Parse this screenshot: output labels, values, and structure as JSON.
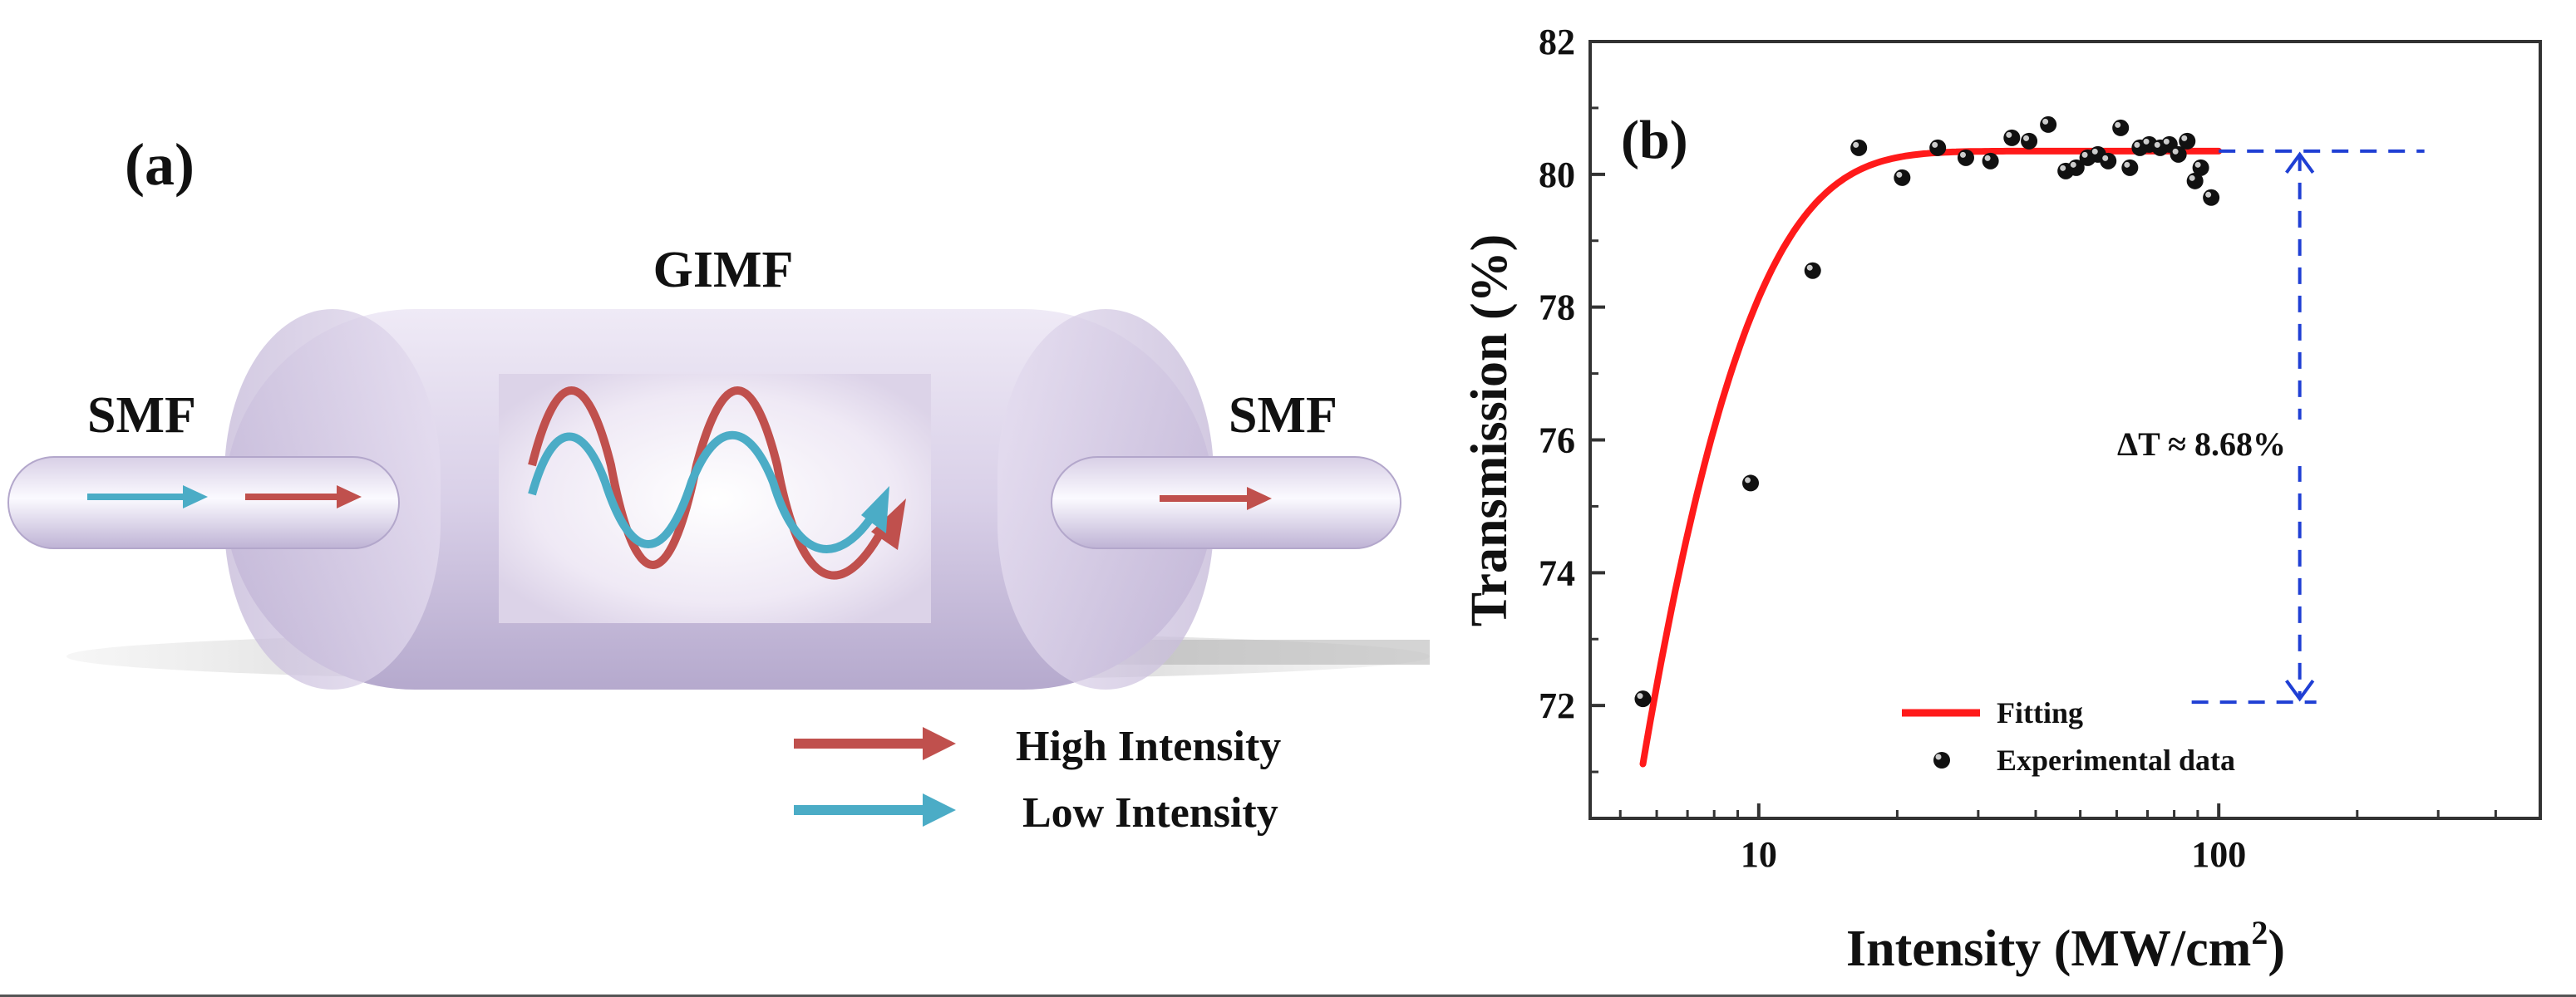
{
  "panel_a": {
    "label": "(a)",
    "gimf_label": "GIMF",
    "smf_left_label": "SMF",
    "smf_right_label": "SMF",
    "legend": [
      {
        "text": "High Intensity",
        "color": "#c0504d"
      },
      {
        "text": "Low Intensity",
        "color": "#4bacc6"
      }
    ]
  },
  "panel_b": {
    "label": "(b)",
    "delta_label": "ΔT ≈  8.68%"
  },
  "chart_data": {
    "type": "scatter",
    "title": "",
    "xlabel": "Intensity (MW/cm",
    "xlabel_sup": "2",
    "xlabel_close": ")",
    "ylabel": "Transmission (%)",
    "xscale": "log",
    "xlim": [
      4.3,
      500
    ],
    "ylim": [
      70.3,
      82
    ],
    "xticks": [
      {
        "value": 10,
        "label": "10"
      },
      {
        "value": 100,
        "label": "100"
      }
    ],
    "yticks": [
      {
        "value": 72,
        "label": "72"
      },
      {
        "value": 74,
        "label": "74"
      },
      {
        "value": 76,
        "label": "76"
      },
      {
        "value": 78,
        "label": "78"
      },
      {
        "value": 80,
        "label": "80"
      },
      {
        "value": 82,
        "label": "82"
      }
    ],
    "legend_position": "bottom-center",
    "series": [
      {
        "name": "Experimental data",
        "kind": "scatter",
        "color": "#111111",
        "x": [
          5.6,
          9.6,
          13.1,
          16.5,
          20.5,
          24.5,
          28.2,
          31.9,
          35.5,
          38.7,
          42.6,
          46.5,
          49.0,
          51.9,
          54.6,
          57.5,
          61.2,
          64.1,
          67.4,
          70.6,
          74.6,
          78.1,
          81.7,
          85.4,
          88.8,
          91.4,
          96.3
        ],
        "y": [
          72.1,
          75.35,
          78.55,
          80.4,
          79.95,
          80.4,
          80.25,
          80.2,
          80.55,
          80.5,
          80.75,
          80.05,
          80.1,
          80.25,
          80.3,
          80.2,
          80.7,
          80.1,
          80.4,
          80.45,
          80.4,
          80.45,
          80.3,
          80.5,
          79.9,
          80.1,
          79.65
        ]
      },
      {
        "name": "Fitting",
        "kind": "line",
        "color": "#ff1a1a",
        "model": "exp_saturation",
        "params": {
          "Tmax": 80.35,
          "dT": 8.68,
          "Isat": 3.2,
          "I0": 5.6
        },
        "x_range": [
          5.6,
          100
        ]
      }
    ],
    "annotations": [
      {
        "text": "ΔT ≈  8.68%",
        "type": "double-arrow",
        "x": 150,
        "y_from": 72.05,
        "y_to": 80.35,
        "color": "#1f3fd4"
      }
    ]
  }
}
